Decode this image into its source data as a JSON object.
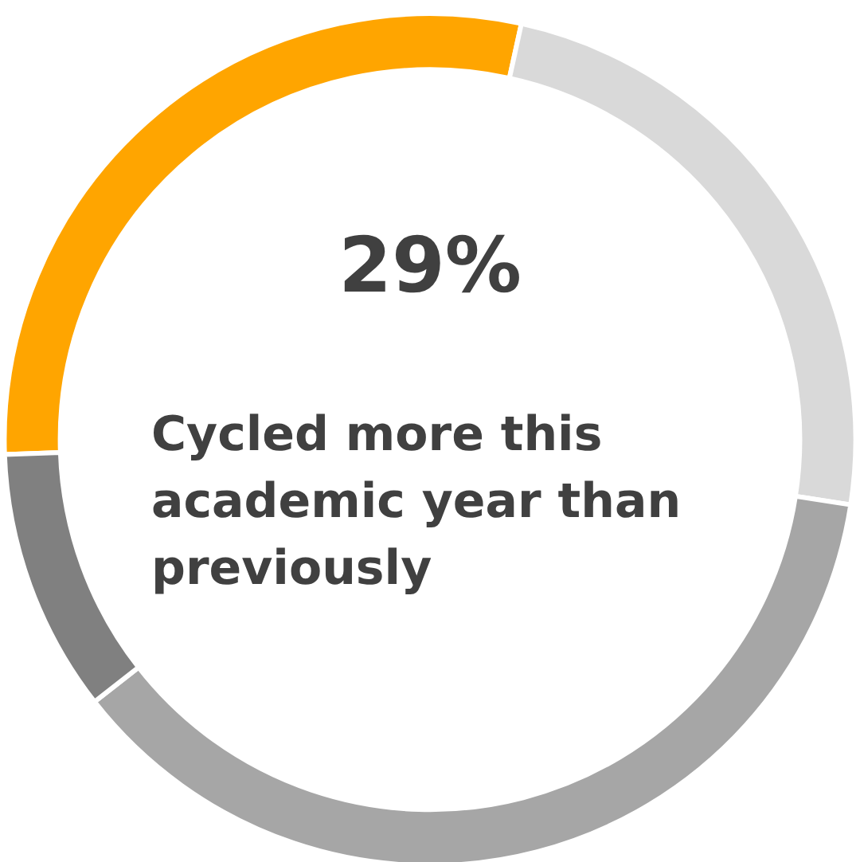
{
  "chart_data": {
    "type": "donut",
    "title": "29%",
    "subtitle": "Cycled more this academic year than previously",
    "categories": [
      null,
      null,
      null,
      null
    ],
    "values": [
      29,
      24,
      37,
      10
    ],
    "colors": [
      "#ffa500",
      "#d9d9d9",
      "#a6a6a6",
      "#808080"
    ]
  }
}
